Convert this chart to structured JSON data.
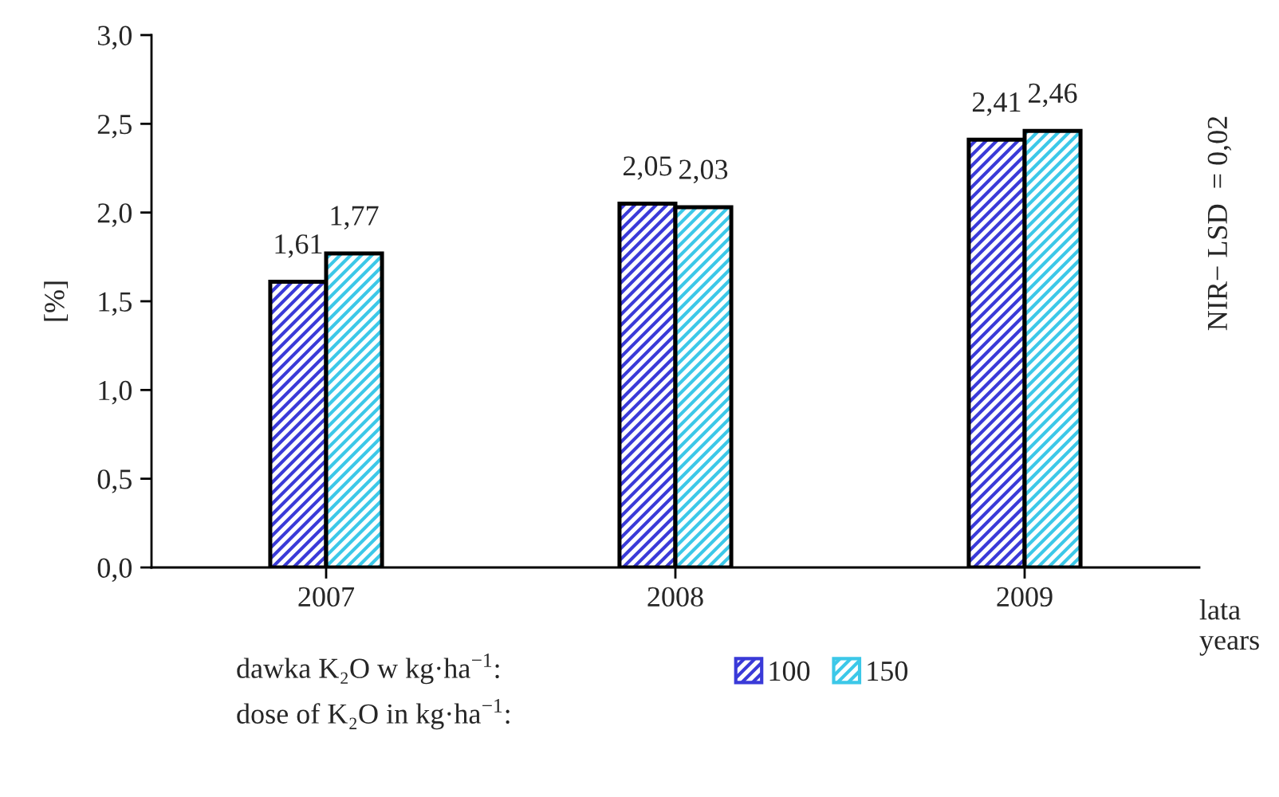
{
  "chart_data": {
    "type": "bar",
    "categories": [
      "2007",
      "2008",
      "2009"
    ],
    "series": [
      {
        "name": "100",
        "color": "#3a3ad8",
        "values": [
          1.61,
          2.05,
          2.41
        ],
        "value_labels": [
          "1,61",
          "2,05",
          "2,41"
        ]
      },
      {
        "name": "150",
        "color": "#3cc8e8",
        "values": [
          1.77,
          2.03,
          2.46
        ],
        "value_labels": [
          "1,77",
          "2,03",
          "2,46"
        ]
      }
    ],
    "ylabel": "[%]",
    "xlabel": "lata\nyears",
    "legend_title": "dawka K₂O w kg·ha$^{−1}$:\ndose of K₂O in kg·ha$^{−1}$:",
    "annotations": [
      "NIR− LSD  = 0,02"
    ],
    "ylim": [
      0,
      3
    ],
    "yticks": [
      {
        "value": 0,
        "label": "0,0"
      },
      {
        "value": 0.5,
        "label": "0,5"
      },
      {
        "value": 1,
        "label": "1,0"
      },
      {
        "value": 1.5,
        "label": "1,5"
      },
      {
        "value": 2,
        "label": "2,0"
      },
      {
        "value": 2.5,
        "label": "2,5"
      },
      {
        "value": 3,
        "label": "3,0"
      }
    ],
    "legend": "bottom",
    "grid": false
  }
}
